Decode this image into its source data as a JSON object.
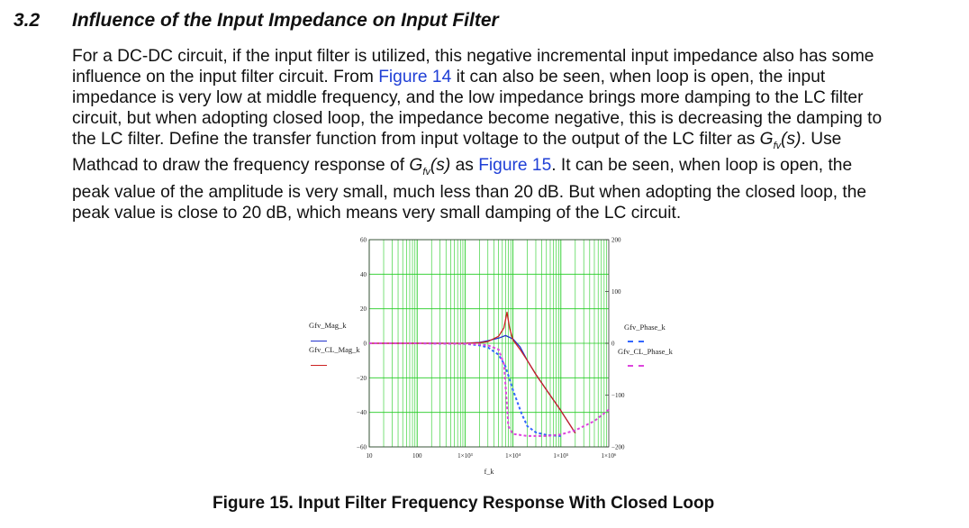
{
  "section": {
    "number": "3.2",
    "title": "Influence of the Input Impedance on Input Filter"
  },
  "paragraph": {
    "l1": "For a DC-DC circuit, if the input filter is utilized, this negative incremental input impedance also has some",
    "l2a": "influence on the input filter circuit. From ",
    "l2link": "Figure 14",
    "l2b": " it can also be seen, when loop is open, the input",
    "l3": "impedance is very low at middle frequency, and the low impedance brings more damping to the LC filter",
    "l4": "circuit, but when adopting closed loop, the impedance become negative, this is decreasing the damping to",
    "l5a": "the LC filter. Define the transfer function from input voltage to the output of the LC filter as ",
    "l5g": "G",
    "l5sub": "fv",
    "l5s": "(s)",
    "l5b": ". Use",
    "l6a": "Mathcad to draw the frequency response of ",
    "l6g": "G",
    "l6sub": "fv",
    "l6s": "(s)",
    "l6b": " as ",
    "l6link": "Figure 15",
    "l6c": ". It can be seen, when loop is open, the",
    "l7": "peak value of the amplitude is very small, much less than 20 dB. But when adopting the closed loop, the",
    "l8": "peak value is close to 20 dB, which means very small damping of the LC circuit."
  },
  "figure": {
    "caption": "Figure 15. Input Filter Frequency Response With Closed Loop"
  },
  "chart_data": {
    "type": "line",
    "x_scale": "log",
    "xlabel": "f_k",
    "xlim": [
      10,
      1000000
    ],
    "x_ticks": [
      "10",
      "100",
      "1×10³",
      "1×10⁴",
      "1×10⁵",
      "1×10⁶"
    ],
    "ylim_left": [
      -60,
      60
    ],
    "y_ticks_left": [
      "60",
      "40",
      "20",
      "0",
      "−20",
      "−40",
      "−60"
    ],
    "ylim_right": [
      -200,
      200
    ],
    "y_ticks_right": [
      "200",
      "100",
      "0",
      "−100",
      "−200"
    ],
    "grid": true,
    "legend_left": [
      {
        "name": "Gfv_Mag_k",
        "color": "#2233cc",
        "style": "solid"
      },
      {
        "name": "Gfv_CL_Mag_k",
        "color": "#cc2222",
        "style": "solid"
      }
    ],
    "legend_right": [
      {
        "name": "Gfv_Phase_k",
        "color": "#3366ff",
        "style": "dashed"
      },
      {
        "name": "Gfv_CL_Phase_k",
        "color": "#dd44dd",
        "style": "dashed"
      }
    ],
    "series": [
      {
        "name": "Gfv_Mag",
        "axis": "left",
        "color": "#2233cc",
        "dash": false,
        "x": [
          10,
          100,
          1000,
          2000,
          3000,
          5000,
          7000,
          10000,
          14000,
          20000,
          30000,
          50000,
          100000,
          200000
        ],
        "y": [
          0,
          0,
          0,
          0.5,
          1.5,
          3,
          4.5,
          2.5,
          -2,
          -10,
          -18,
          -27,
          -39,
          -52
        ]
      },
      {
        "name": "Gfv_CL_Mag",
        "axis": "left",
        "color": "#cc2222",
        "dash": false,
        "x": [
          10,
          100,
          1000,
          2000,
          3000,
          5000,
          6500,
          7500,
          8500,
          10000,
          14000,
          20000,
          30000,
          50000,
          100000,
          200000
        ],
        "y": [
          0,
          0,
          0,
          0.3,
          1,
          4,
          9,
          18,
          9,
          2,
          -3.5,
          -10,
          -18,
          -27,
          -39,
          -52
        ]
      },
      {
        "name": "Gfv_Phase",
        "axis": "right",
        "color": "#3366ff",
        "dash": true,
        "x": [
          10,
          100,
          1000,
          2000,
          3000,
          5000,
          7000,
          10000,
          15000,
          20000,
          30000,
          50000,
          100000
        ],
        "y": [
          0,
          0,
          -1,
          -4,
          -8,
          -22,
          -45,
          -90,
          -135,
          -160,
          -172,
          -177,
          -179
        ]
      },
      {
        "name": "Gfv_CL_Phase",
        "axis": "right",
        "color": "#dd44dd",
        "dash": true,
        "x": [
          10,
          100,
          1000,
          2000,
          3000,
          5000,
          6500,
          7500,
          8000,
          10000,
          20000,
          50000,
          100000,
          200000,
          500000,
          1000000
        ],
        "y": [
          0,
          0,
          -1,
          -2,
          -4,
          -12,
          -40,
          -120,
          -160,
          -175,
          -179,
          -179,
          -176,
          -168,
          -150,
          -128
        ]
      }
    ]
  }
}
